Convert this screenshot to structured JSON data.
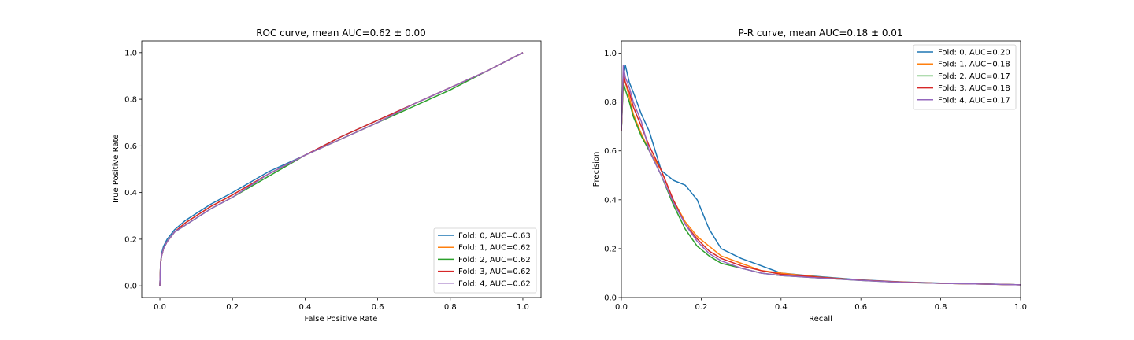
{
  "chart_data": [
    {
      "type": "line",
      "title": "ROC curve, mean AUC=0.62 ± 0.00",
      "xlabel": "False Positive Rate",
      "ylabel": "True Positive Rate",
      "xlim": [
        -0.05,
        1.05
      ],
      "ylim": [
        -0.05,
        1.05
      ],
      "xticks": [
        0.0,
        0.2,
        0.4,
        0.6,
        0.8,
        1.0
      ],
      "yticks": [
        0.0,
        0.2,
        0.4,
        0.6,
        0.8,
        1.0
      ],
      "xtick_labels": [
        "0.0",
        "0.2",
        "0.4",
        "0.6",
        "0.8",
        "1.0"
      ],
      "ytick_labels": [
        "0.0",
        "0.2",
        "0.4",
        "0.6",
        "0.8",
        "1.0"
      ],
      "grid": false,
      "legend_position": "lower-right",
      "series": [
        {
          "name": "Fold: 0, AUC=0.63",
          "color": "#1f77b4",
          "x": [
            0,
            0.002,
            0.005,
            0.01,
            0.02,
            0.04,
            0.07,
            0.1,
            0.14,
            0.2,
            0.3,
            0.4,
            0.5,
            0.6,
            0.7,
            0.8,
            0.9,
            1.0
          ],
          "y": [
            0,
            0.1,
            0.14,
            0.17,
            0.2,
            0.24,
            0.28,
            0.31,
            0.35,
            0.4,
            0.49,
            0.56,
            0.64,
            0.71,
            0.78,
            0.85,
            0.92,
            1.0
          ]
        },
        {
          "name": "Fold: 1, AUC=0.62",
          "color": "#ff7f0e",
          "x": [
            0,
            0.002,
            0.005,
            0.01,
            0.02,
            0.04,
            0.07,
            0.1,
            0.14,
            0.2,
            0.3,
            0.4,
            0.5,
            0.6,
            0.7,
            0.8,
            0.9,
            1.0
          ],
          "y": [
            0,
            0.1,
            0.13,
            0.16,
            0.19,
            0.23,
            0.27,
            0.3,
            0.34,
            0.39,
            0.48,
            0.56,
            0.63,
            0.7,
            0.78,
            0.85,
            0.92,
            1.0
          ]
        },
        {
          "name": "Fold: 2, AUC=0.62",
          "color": "#2ca02c",
          "x": [
            0,
            0.002,
            0.005,
            0.01,
            0.02,
            0.04,
            0.07,
            0.1,
            0.14,
            0.2,
            0.3,
            0.4,
            0.5,
            0.6,
            0.7,
            0.8,
            0.9,
            1.0
          ],
          "y": [
            0,
            0.1,
            0.13,
            0.16,
            0.19,
            0.23,
            0.26,
            0.29,
            0.33,
            0.38,
            0.47,
            0.56,
            0.63,
            0.7,
            0.77,
            0.84,
            0.92,
            1.0
          ]
        },
        {
          "name": "Fold: 3, AUC=0.62",
          "color": "#d62728",
          "x": [
            0,
            0.002,
            0.005,
            0.01,
            0.02,
            0.04,
            0.07,
            0.1,
            0.14,
            0.2,
            0.3,
            0.4,
            0.5,
            0.6,
            0.7,
            0.8,
            0.9,
            1.0
          ],
          "y": [
            0,
            0.1,
            0.13,
            0.16,
            0.19,
            0.23,
            0.27,
            0.3,
            0.34,
            0.39,
            0.48,
            0.56,
            0.64,
            0.71,
            0.78,
            0.85,
            0.92,
            1.0
          ]
        },
        {
          "name": "Fold: 4, AUC=0.62",
          "color": "#9467bd",
          "x": [
            0,
            0.002,
            0.005,
            0.01,
            0.02,
            0.04,
            0.07,
            0.1,
            0.14,
            0.2,
            0.3,
            0.4,
            0.5,
            0.6,
            0.7,
            0.8,
            0.9,
            1.0
          ],
          "y": [
            0,
            0.1,
            0.13,
            0.16,
            0.19,
            0.23,
            0.26,
            0.29,
            0.33,
            0.38,
            0.48,
            0.56,
            0.63,
            0.7,
            0.78,
            0.85,
            0.92,
            1.0
          ]
        }
      ]
    },
    {
      "type": "line",
      "title": "P-R curve, mean AUC=0.18 ± 0.01",
      "xlabel": "Recall",
      "ylabel": "Precision",
      "xlim": [
        0.0,
        1.0
      ],
      "ylim": [
        0.0,
        1.05
      ],
      "xticks": [
        0.0,
        0.2,
        0.4,
        0.6,
        0.8,
        1.0
      ],
      "yticks": [
        0.0,
        0.2,
        0.4,
        0.6,
        0.8,
        1.0
      ],
      "xtick_labels": [
        "0.0",
        "0.2",
        "0.4",
        "0.6",
        "0.8",
        "1.0"
      ],
      "ytick_labels": [
        "0.0",
        "0.2",
        "0.4",
        "0.6",
        "0.8",
        "1.0"
      ],
      "grid": false,
      "legend_position": "upper-right",
      "series": [
        {
          "name": "Fold: 0, AUC=0.20",
          "color": "#1f77b4",
          "x": [
            0.0,
            0.005,
            0.01,
            0.02,
            0.03,
            0.05,
            0.07,
            0.1,
            0.13,
            0.16,
            0.19,
            0.22,
            0.25,
            0.3,
            0.35,
            0.4,
            0.5,
            0.6,
            0.7,
            0.8,
            0.9,
            1.0
          ],
          "y": [
            0.68,
            0.9,
            0.95,
            0.88,
            0.84,
            0.75,
            0.68,
            0.52,
            0.48,
            0.46,
            0.4,
            0.28,
            0.2,
            0.16,
            0.13,
            0.1,
            0.085,
            0.072,
            0.064,
            0.059,
            0.056,
            0.052
          ]
        },
        {
          "name": "Fold: 1, AUC=0.18",
          "color": "#ff7f0e",
          "x": [
            0.0,
            0.005,
            0.01,
            0.02,
            0.03,
            0.05,
            0.07,
            0.1,
            0.13,
            0.16,
            0.19,
            0.22,
            0.25,
            0.3,
            0.35,
            0.4,
            0.5,
            0.6,
            0.7,
            0.8,
            0.9,
            1.0
          ],
          "y": [
            0.68,
            0.9,
            0.88,
            0.82,
            0.75,
            0.67,
            0.6,
            0.52,
            0.4,
            0.31,
            0.25,
            0.21,
            0.17,
            0.14,
            0.11,
            0.1,
            0.083,
            0.071,
            0.063,
            0.058,
            0.055,
            0.052
          ]
        },
        {
          "name": "Fold: 2, AUC=0.17",
          "color": "#2ca02c",
          "x": [
            0.0,
            0.005,
            0.01,
            0.02,
            0.03,
            0.05,
            0.07,
            0.1,
            0.13,
            0.16,
            0.19,
            0.22,
            0.25,
            0.3,
            0.35,
            0.4,
            0.5,
            0.6,
            0.7,
            0.8,
            0.9,
            1.0
          ],
          "y": [
            0.68,
            0.88,
            0.85,
            0.8,
            0.74,
            0.66,
            0.6,
            0.5,
            0.38,
            0.28,
            0.21,
            0.17,
            0.14,
            0.12,
            0.1,
            0.09,
            0.08,
            0.07,
            0.062,
            0.058,
            0.055,
            0.052
          ]
        },
        {
          "name": "Fold: 3, AUC=0.18",
          "color": "#d62728",
          "x": [
            0.0,
            0.005,
            0.01,
            0.02,
            0.03,
            0.05,
            0.07,
            0.1,
            0.13,
            0.16,
            0.19,
            0.22,
            0.25,
            0.3,
            0.35,
            0.4,
            0.5,
            0.6,
            0.7,
            0.8,
            0.9,
            1.0
          ],
          "y": [
            0.68,
            0.92,
            0.88,
            0.84,
            0.78,
            0.7,
            0.62,
            0.52,
            0.4,
            0.3,
            0.24,
            0.19,
            0.16,
            0.13,
            0.11,
            0.095,
            0.082,
            0.071,
            0.063,
            0.058,
            0.055,
            0.052
          ]
        },
        {
          "name": "Fold: 4, AUC=0.17",
          "color": "#9467bd",
          "x": [
            0.0,
            0.005,
            0.01,
            0.02,
            0.03,
            0.05,
            0.07,
            0.1,
            0.13,
            0.16,
            0.19,
            0.22,
            0.25,
            0.3,
            0.35,
            0.4,
            0.5,
            0.6,
            0.7,
            0.8,
            0.9,
            1.0
          ],
          "y": [
            0.68,
            0.95,
            0.9,
            0.86,
            0.8,
            0.72,
            0.6,
            0.5,
            0.39,
            0.3,
            0.23,
            0.18,
            0.15,
            0.12,
            0.1,
            0.09,
            0.08,
            0.07,
            0.062,
            0.058,
            0.055,
            0.052
          ]
        }
      ]
    }
  ]
}
